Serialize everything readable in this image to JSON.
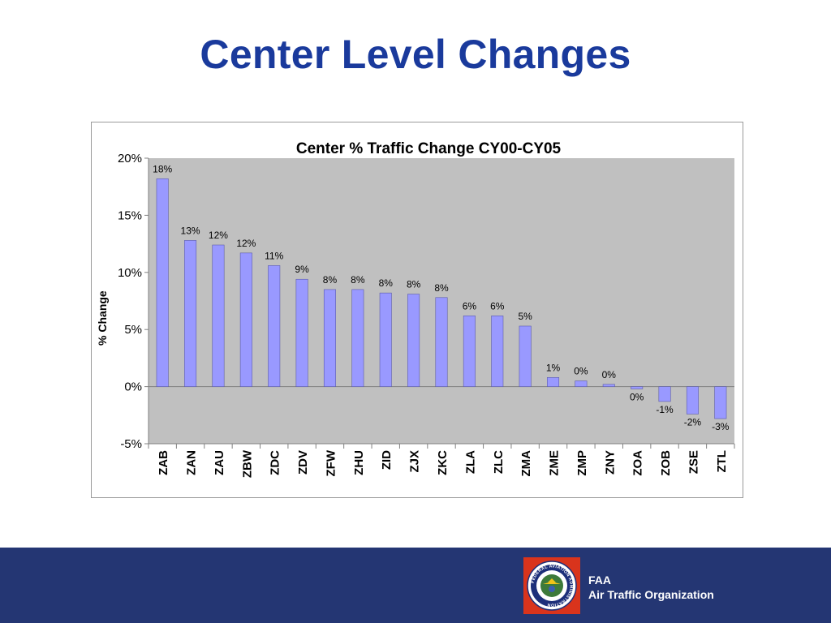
{
  "slide": {
    "title": "Center Level Changes"
  },
  "footer": {
    "line1": "FAA",
    "line2": "Air Traffic Organization",
    "logo_ring_text": "FEDERAL AVIATION ADMINISTRATION",
    "band_color": "#243673",
    "logo_bg_color": "#d9341c"
  },
  "chart_data": {
    "type": "bar",
    "title": "Center %  Traffic Change CY00-CY05",
    "xlabel": "",
    "ylabel": "% Change",
    "ylim": [
      -5,
      20
    ],
    "yticks": [
      -5,
      0,
      5,
      10,
      15,
      20
    ],
    "ytick_labels": [
      "-5%",
      "0%",
      "5%",
      "10%",
      "15%",
      "20%"
    ],
    "grid": false,
    "plot_bg_color": "#c0c0c0",
    "bar_color": "#9999ff",
    "categories": [
      "ZAB",
      "ZAN",
      "ZAU",
      "ZBW",
      "ZDC",
      "ZDV",
      "ZFW",
      "ZHU",
      "ZID",
      "ZJX",
      "ZKC",
      "ZLA",
      "ZLC",
      "ZMA",
      "ZME",
      "ZMP",
      "ZNY",
      "ZOA",
      "ZOB",
      "ZSE",
      "ZTL"
    ],
    "values": [
      18.2,
      12.8,
      12.4,
      11.7,
      10.6,
      9.4,
      8.5,
      8.5,
      8.2,
      8.1,
      7.8,
      6.2,
      6.2,
      5.3,
      0.8,
      0.5,
      0.2,
      -0.2,
      -1.3,
      -2.4,
      -2.8
    ],
    "data_labels": [
      "18%",
      "13%",
      "12%",
      "12%",
      "11%",
      "9%",
      "8%",
      "8%",
      "8%",
      "8%",
      "8%",
      "6%",
      "6%",
      "5%",
      "1%",
      "0%",
      "0%",
      "0%",
      "-1%",
      "-2%",
      "-3%"
    ]
  }
}
